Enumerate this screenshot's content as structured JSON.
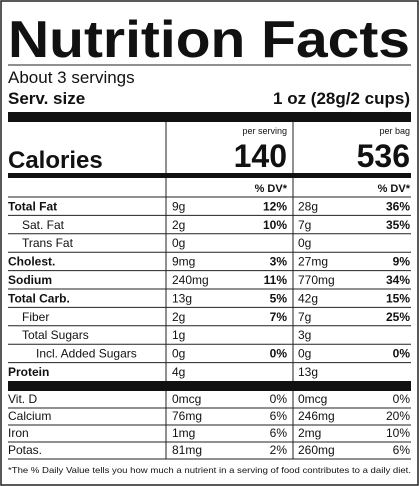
{
  "title": "Nutrition Facts",
  "servings": "About 3 servings",
  "serving_size": {
    "label": "Serv. size",
    "value": "1 oz (28g/2 cups)"
  },
  "calories": {
    "label": "Calories",
    "per_serving_label": "per serving",
    "per_serving": 140,
    "per_bag_label": "per bag",
    "per_bag": 536
  },
  "dv_header": "% DV*",
  "nutrients": [
    {
      "name": "Total Fat",
      "serving": {
        "amount": "9g",
        "dv": "12%"
      },
      "bag": {
        "amount": "28g",
        "dv": "36%"
      }
    },
    {
      "name": "Sat. Fat",
      "serving": {
        "amount": "2g",
        "dv": "10%"
      },
      "bag": {
        "amount": "7g",
        "dv": "35%"
      }
    },
    {
      "name": "Trans Fat",
      "serving": {
        "amount": "0g"
      },
      "bag": {
        "amount": "0g"
      }
    },
    {
      "name": "Cholest.",
      "serving": {
        "amount": "9mg",
        "dv": "3%"
      },
      "bag": {
        "amount": "27mg",
        "dv": "9%"
      }
    },
    {
      "name": "Sodium",
      "serving": {
        "amount": "240mg",
        "dv": "11%"
      },
      "bag": {
        "amount": "770mg",
        "dv": "34%"
      }
    },
    {
      "name": "Total Carb.",
      "serving": {
        "amount": "13g",
        "dv": "5%"
      },
      "bag": {
        "amount": "42g",
        "dv": "15%"
      }
    },
    {
      "name": "Fiber",
      "serving": {
        "amount": "2g",
        "dv": "7%"
      },
      "bag": {
        "amount": "7g",
        "dv": "25%"
      }
    },
    {
      "name": "Total Sugars",
      "serving": {
        "amount": "1g"
      },
      "bag": {
        "amount": "3g"
      }
    },
    {
      "name": "Incl. Added Sugars",
      "serving": {
        "amount": "0g",
        "dv": "0%"
      },
      "bag": {
        "amount": "0g",
        "dv": "0%"
      }
    },
    {
      "name": "Protein",
      "serving": {
        "amount": "4g"
      },
      "bag": {
        "amount": "13g"
      }
    }
  ],
  "vitamins": [
    {
      "name": "Vit. D",
      "serving": {
        "amount": "0mcg",
        "dv": "0%"
      },
      "bag": {
        "amount": "0mcg",
        "dv": "0%"
      }
    },
    {
      "name": "Calcium",
      "serving": {
        "amount": "76mg",
        "dv": "6%"
      },
      "bag": {
        "amount": "246mg",
        "dv": "20%"
      }
    },
    {
      "name": "Iron",
      "serving": {
        "amount": "1mg",
        "dv": "6%"
      },
      "bag": {
        "amount": "2mg",
        "dv": "10%"
      }
    },
    {
      "name": "Potas.",
      "serving": {
        "amount": "81mg",
        "dv": "2%"
      },
      "bag": {
        "amount": "260mg",
        "dv": "6%"
      }
    }
  ],
  "footnote": "*The % Daily Value tells you how much a nutrient in a serving of food contributes to a daily diet."
}
